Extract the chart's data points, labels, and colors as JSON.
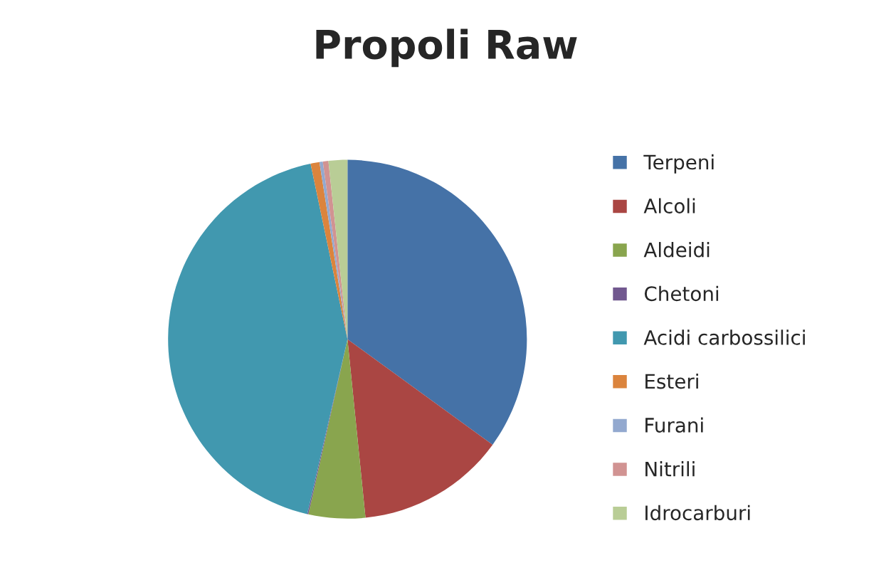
{
  "chart_data": {
    "type": "pie",
    "title": "Propoli Raw",
    "categories": [
      "Terpeni",
      "Alcoli",
      "Aldeidi",
      "Chetoni",
      "Acidi carbossilici",
      "Esteri",
      "Furani",
      "Nitrili",
      "Idrocarburi"
    ],
    "values": [
      35,
      13.4,
      5.1,
      0.1,
      43.1,
      0.8,
      0.3,
      0.5,
      1.7
    ],
    "colors": [
      "#4572a7",
      "#aa4643",
      "#89a54e",
      "#71588f",
      "#4198af",
      "#db843d",
      "#93a9cf",
      "#d19392",
      "#b9cd96"
    ],
    "legend": "right"
  }
}
